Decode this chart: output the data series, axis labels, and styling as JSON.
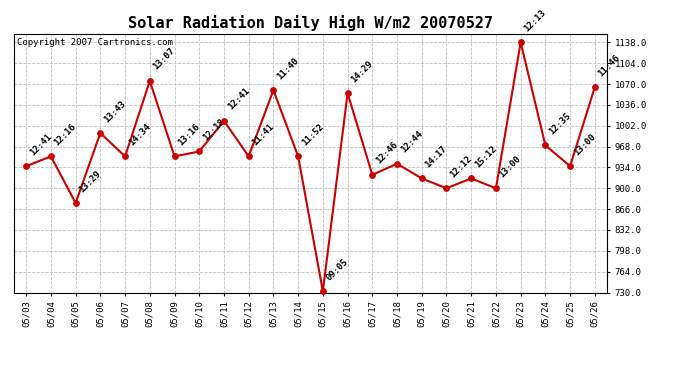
{
  "title": "Solar Radiation Daily High W/m2 20070527",
  "copyright": "Copyright 2007 Cartronics.com",
  "dates": [
    "05/03",
    "05/04",
    "05/05",
    "05/06",
    "05/07",
    "05/08",
    "05/09",
    "05/10",
    "05/11",
    "05/12",
    "05/13",
    "05/14",
    "05/15",
    "05/16",
    "05/17",
    "05/18",
    "05/19",
    "05/20",
    "05/21",
    "05/22",
    "05/23",
    "05/24",
    "05/25",
    "05/26"
  ],
  "values": [
    936,
    952,
    876,
    990,
    952,
    1075,
    952,
    960,
    1010,
    952,
    1060,
    952,
    732,
    1055,
    922,
    940,
    916,
    900,
    916,
    900,
    1138,
    970,
    936,
    1065
  ],
  "times": [
    "12:41",
    "12:16",
    "13:29",
    "13:43",
    "14:34",
    "13:07",
    "13:16",
    "12:18",
    "12:41",
    "11:41",
    "11:40",
    "11:52",
    "09:05",
    "14:29",
    "12:46",
    "12:44",
    "14:17",
    "12:12",
    "15:12",
    "13:00",
    "12:13",
    "12:35",
    "13:00",
    "11:46"
  ],
  "ylim_min": 730,
  "ylim_max": 1152,
  "yticks": [
    730.0,
    764.0,
    798.0,
    832.0,
    866.0,
    900.0,
    934.0,
    968.0,
    1002.0,
    1036.0,
    1070.0,
    1104.0,
    1138.0
  ],
  "line_color": "#cc0000",
  "marker_color": "#cc0000",
  "bg_color": "#ffffff",
  "grid_color": "#c0c0c0",
  "title_fontsize": 11,
  "label_fontsize": 6.5,
  "annotation_fontsize": 6.5,
  "copyright_fontsize": 6.5
}
